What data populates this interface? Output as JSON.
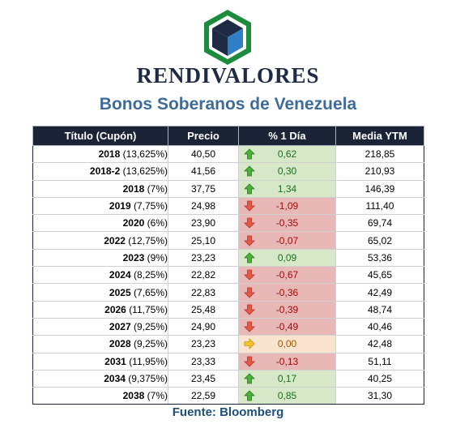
{
  "brand": "RENDIVALORES",
  "subtitle": "Bonos Soberanos de Venezuela",
  "headers": {
    "title": "Título (Cupón)",
    "price": "Precio",
    "change": "% 1 Día",
    "ytm": "Media YTM"
  },
  "rows": [
    {
      "year": "2018",
      "coupon": "(13,625%)",
      "price": "40,50",
      "change": "0,62",
      "direction": "up",
      "ytm": "218,85"
    },
    {
      "year": "2018-2",
      "coupon": "(13,625%)",
      "price": "41,56",
      "change": "0,30",
      "direction": "up",
      "ytm": "210,93"
    },
    {
      "year": "2018",
      "coupon": "(7%)",
      "price": "37,75",
      "change": "1,34",
      "direction": "up",
      "ytm": "146,39"
    },
    {
      "year": "2019",
      "coupon": "(7,75%)",
      "price": "24,98",
      "change": "-1,09",
      "direction": "down",
      "ytm": "111,40"
    },
    {
      "year": "2020",
      "coupon": "(6%)",
      "price": "23,90",
      "change": "-0,35",
      "direction": "down",
      "ytm": "69,74"
    },
    {
      "year": "2022",
      "coupon": "(12,75%)",
      "price": "25,10",
      "change": "-0,07",
      "direction": "down",
      "ytm": "65,02"
    },
    {
      "year": "2023",
      "coupon": "(9%)",
      "price": "23,23",
      "change": "0,09",
      "direction": "up",
      "ytm": "53,36"
    },
    {
      "year": "2024",
      "coupon": "(8,25%)",
      "price": "22,82",
      "change": "-0,67",
      "direction": "down",
      "ytm": "45,65"
    },
    {
      "year": "2025",
      "coupon": "(7,65%)",
      "price": "22,83",
      "change": "-0,36",
      "direction": "down",
      "ytm": "42,49"
    },
    {
      "year": "2026",
      "coupon": "(11,75%)",
      "price": "25,48",
      "change": "-0,39",
      "direction": "down",
      "ytm": "48,74"
    },
    {
      "year": "2027",
      "coupon": "(9,25%)",
      "price": "24,90",
      "change": "-0,49",
      "direction": "down",
      "ytm": "40,46"
    },
    {
      "year": "2028",
      "coupon": "(9,25%)",
      "price": "23,23",
      "change": "0,00",
      "direction": "flat",
      "ytm": "42,48"
    },
    {
      "year": "2031",
      "coupon": "(11,95%)",
      "price": "23,33",
      "change": "-0,13",
      "direction": "down",
      "ytm": "51,11"
    },
    {
      "year": "2034",
      "coupon": "(9,375%)",
      "price": "23,45",
      "change": "0,17",
      "direction": "up",
      "ytm": "40,25"
    },
    {
      "year": "2038",
      "coupon": "(7%)",
      "price": "22,59",
      "change": "0,85",
      "direction": "up",
      "ytm": "31,30"
    }
  ],
  "icons": {
    "logo": "hexagon-cube-logo-icon",
    "up": "arrow-up-icon",
    "down": "arrow-down-icon",
    "flat": "arrow-right-icon"
  },
  "colors": {
    "up_arrow": "#4caf3a",
    "down_arrow": "#e35a4b",
    "flat_arrow": "#f6c12e",
    "header_bg": "#1b2336",
    "subtitle": "#3f6b98",
    "logo_green": "#1b8c3c",
    "logo_blue": "#2f7fc8"
  },
  "source": "Fuente: Bloomberg"
}
